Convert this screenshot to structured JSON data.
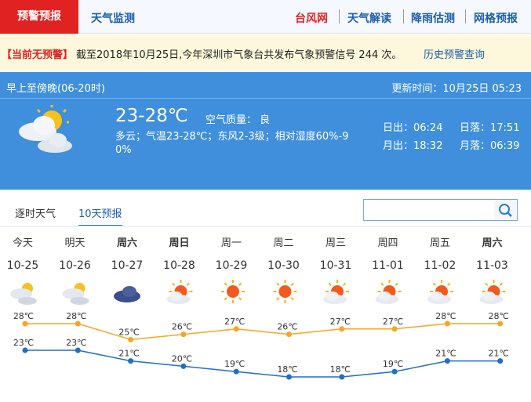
{
  "nav": {
    "tabs": [
      "预警预报",
      "天气监测"
    ],
    "links": [
      "台风网",
      "天气解读",
      "降雨估测",
      "网格预报"
    ]
  },
  "warning": {
    "status": "【当前无预警】",
    "text": "截至2018年10月25日,今年深圳市气象台共发布气象预警信号 244 次。",
    "link": "历史预警查询"
  },
  "today": {
    "period": "早上至傍晚(06-20时)",
    "updated": "更新时间：10月25日 05:23",
    "temp": "23-28℃",
    "air_quality": "空气质量： 良",
    "description": "多云；气温23-28℃；东风2-3级；相对湿度60%-90%",
    "sunrise": "日出：06:24",
    "sunset": "日落：17:51",
    "moonrise": "月出：18:32",
    "moonset": "月落：06:39"
  },
  "tabs": [
    "逐时天气",
    "10天预报"
  ],
  "forecast": {
    "days": [
      "今天",
      "明天",
      "周六",
      "周日",
      "周一",
      "周二",
      "周三",
      "周四",
      "周五",
      "周六"
    ],
    "dates": [
      "10-25",
      "10-26",
      "10-27",
      "10-28",
      "10-29",
      "10-30",
      "10-31",
      "11-01",
      "11-02",
      "11-03"
    ],
    "highs": [
      28,
      28,
      25,
      26,
      27,
      26,
      27,
      27,
      28,
      28
    ],
    "high_labels": [
      "28℃",
      "28℃",
      "25℃",
      "26℃",
      "27℃",
      "26℃",
      "27℃",
      "27℃",
      "28℃",
      "28℃"
    ],
    "lows": [
      23,
      23,
      21,
      20,
      19,
      18,
      18,
      19,
      21,
      21
    ],
    "low_labels": [
      "23℃",
      "23℃",
      "21℃",
      "20℃",
      "19℃",
      "18℃",
      "18℃",
      "19℃",
      "21℃",
      "21℃"
    ]
  }
}
